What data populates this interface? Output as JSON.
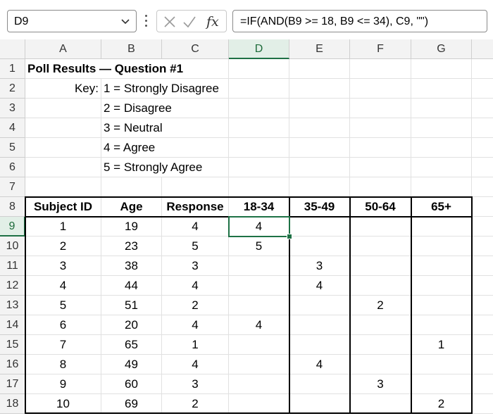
{
  "formula_bar": {
    "name_box": "D9",
    "cancel_icon": "x-icon",
    "enter_icon": "checkmark-icon",
    "fx_label": "fx",
    "formula": "=IF(AND(B9 >= 18, B9 <= 34), C9, \"\")"
  },
  "columns": [
    "A",
    "B",
    "C",
    "D",
    "E",
    "F",
    "G"
  ],
  "selected_column": "D",
  "rows": [
    {
      "n": "1",
      "cells": [
        "Poll Results — Question #1",
        "",
        "",
        "",
        "",
        "",
        ""
      ]
    },
    {
      "n": "2",
      "cells": [
        "Key:",
        "1 = Strongly Disagree",
        "",
        "",
        "",
        "",
        ""
      ]
    },
    {
      "n": "3",
      "cells": [
        "",
        "2 = Disagree",
        "",
        "",
        "",
        "",
        ""
      ]
    },
    {
      "n": "4",
      "cells": [
        "",
        "3 = Neutral",
        "",
        "",
        "",
        "",
        ""
      ]
    },
    {
      "n": "5",
      "cells": [
        "",
        "4 = Agree",
        "",
        "",
        "",
        "",
        ""
      ]
    },
    {
      "n": "6",
      "cells": [
        "",
        "5 = Strongly Agree",
        "",
        "",
        "",
        "",
        ""
      ]
    },
    {
      "n": "7",
      "cells": [
        "",
        "",
        "",
        "",
        "",
        "",
        ""
      ]
    },
    {
      "n": "8",
      "cells": [
        "Subject ID",
        "Age",
        "Response",
        "18-34",
        "35-49",
        "50-64",
        "65+"
      ]
    },
    {
      "n": "9",
      "cells": [
        "1",
        "19",
        "4",
        "4",
        "",
        "",
        ""
      ]
    },
    {
      "n": "10",
      "cells": [
        "2",
        "23",
        "5",
        "5",
        "",
        "",
        ""
      ]
    },
    {
      "n": "11",
      "cells": [
        "3",
        "38",
        "3",
        "",
        "3",
        "",
        ""
      ]
    },
    {
      "n": "12",
      "cells": [
        "4",
        "44",
        "4",
        "",
        "4",
        "",
        ""
      ]
    },
    {
      "n": "13",
      "cells": [
        "5",
        "51",
        "2",
        "",
        "",
        "2",
        ""
      ]
    },
    {
      "n": "14",
      "cells": [
        "6",
        "20",
        "4",
        "4",
        "",
        "",
        ""
      ]
    },
    {
      "n": "15",
      "cells": [
        "7",
        "65",
        "1",
        "",
        "",
        "",
        "1"
      ]
    },
    {
      "n": "16",
      "cells": [
        "8",
        "49",
        "4",
        "",
        "4",
        "",
        ""
      ]
    },
    {
      "n": "17",
      "cells": [
        "9",
        "60",
        "3",
        "",
        "",
        "3",
        ""
      ]
    },
    {
      "n": "18",
      "cells": [
        "10",
        "69",
        "2",
        "",
        "",
        "",
        "2"
      ]
    }
  ],
  "active_cell": "D9",
  "accent_color": "#1e7145"
}
